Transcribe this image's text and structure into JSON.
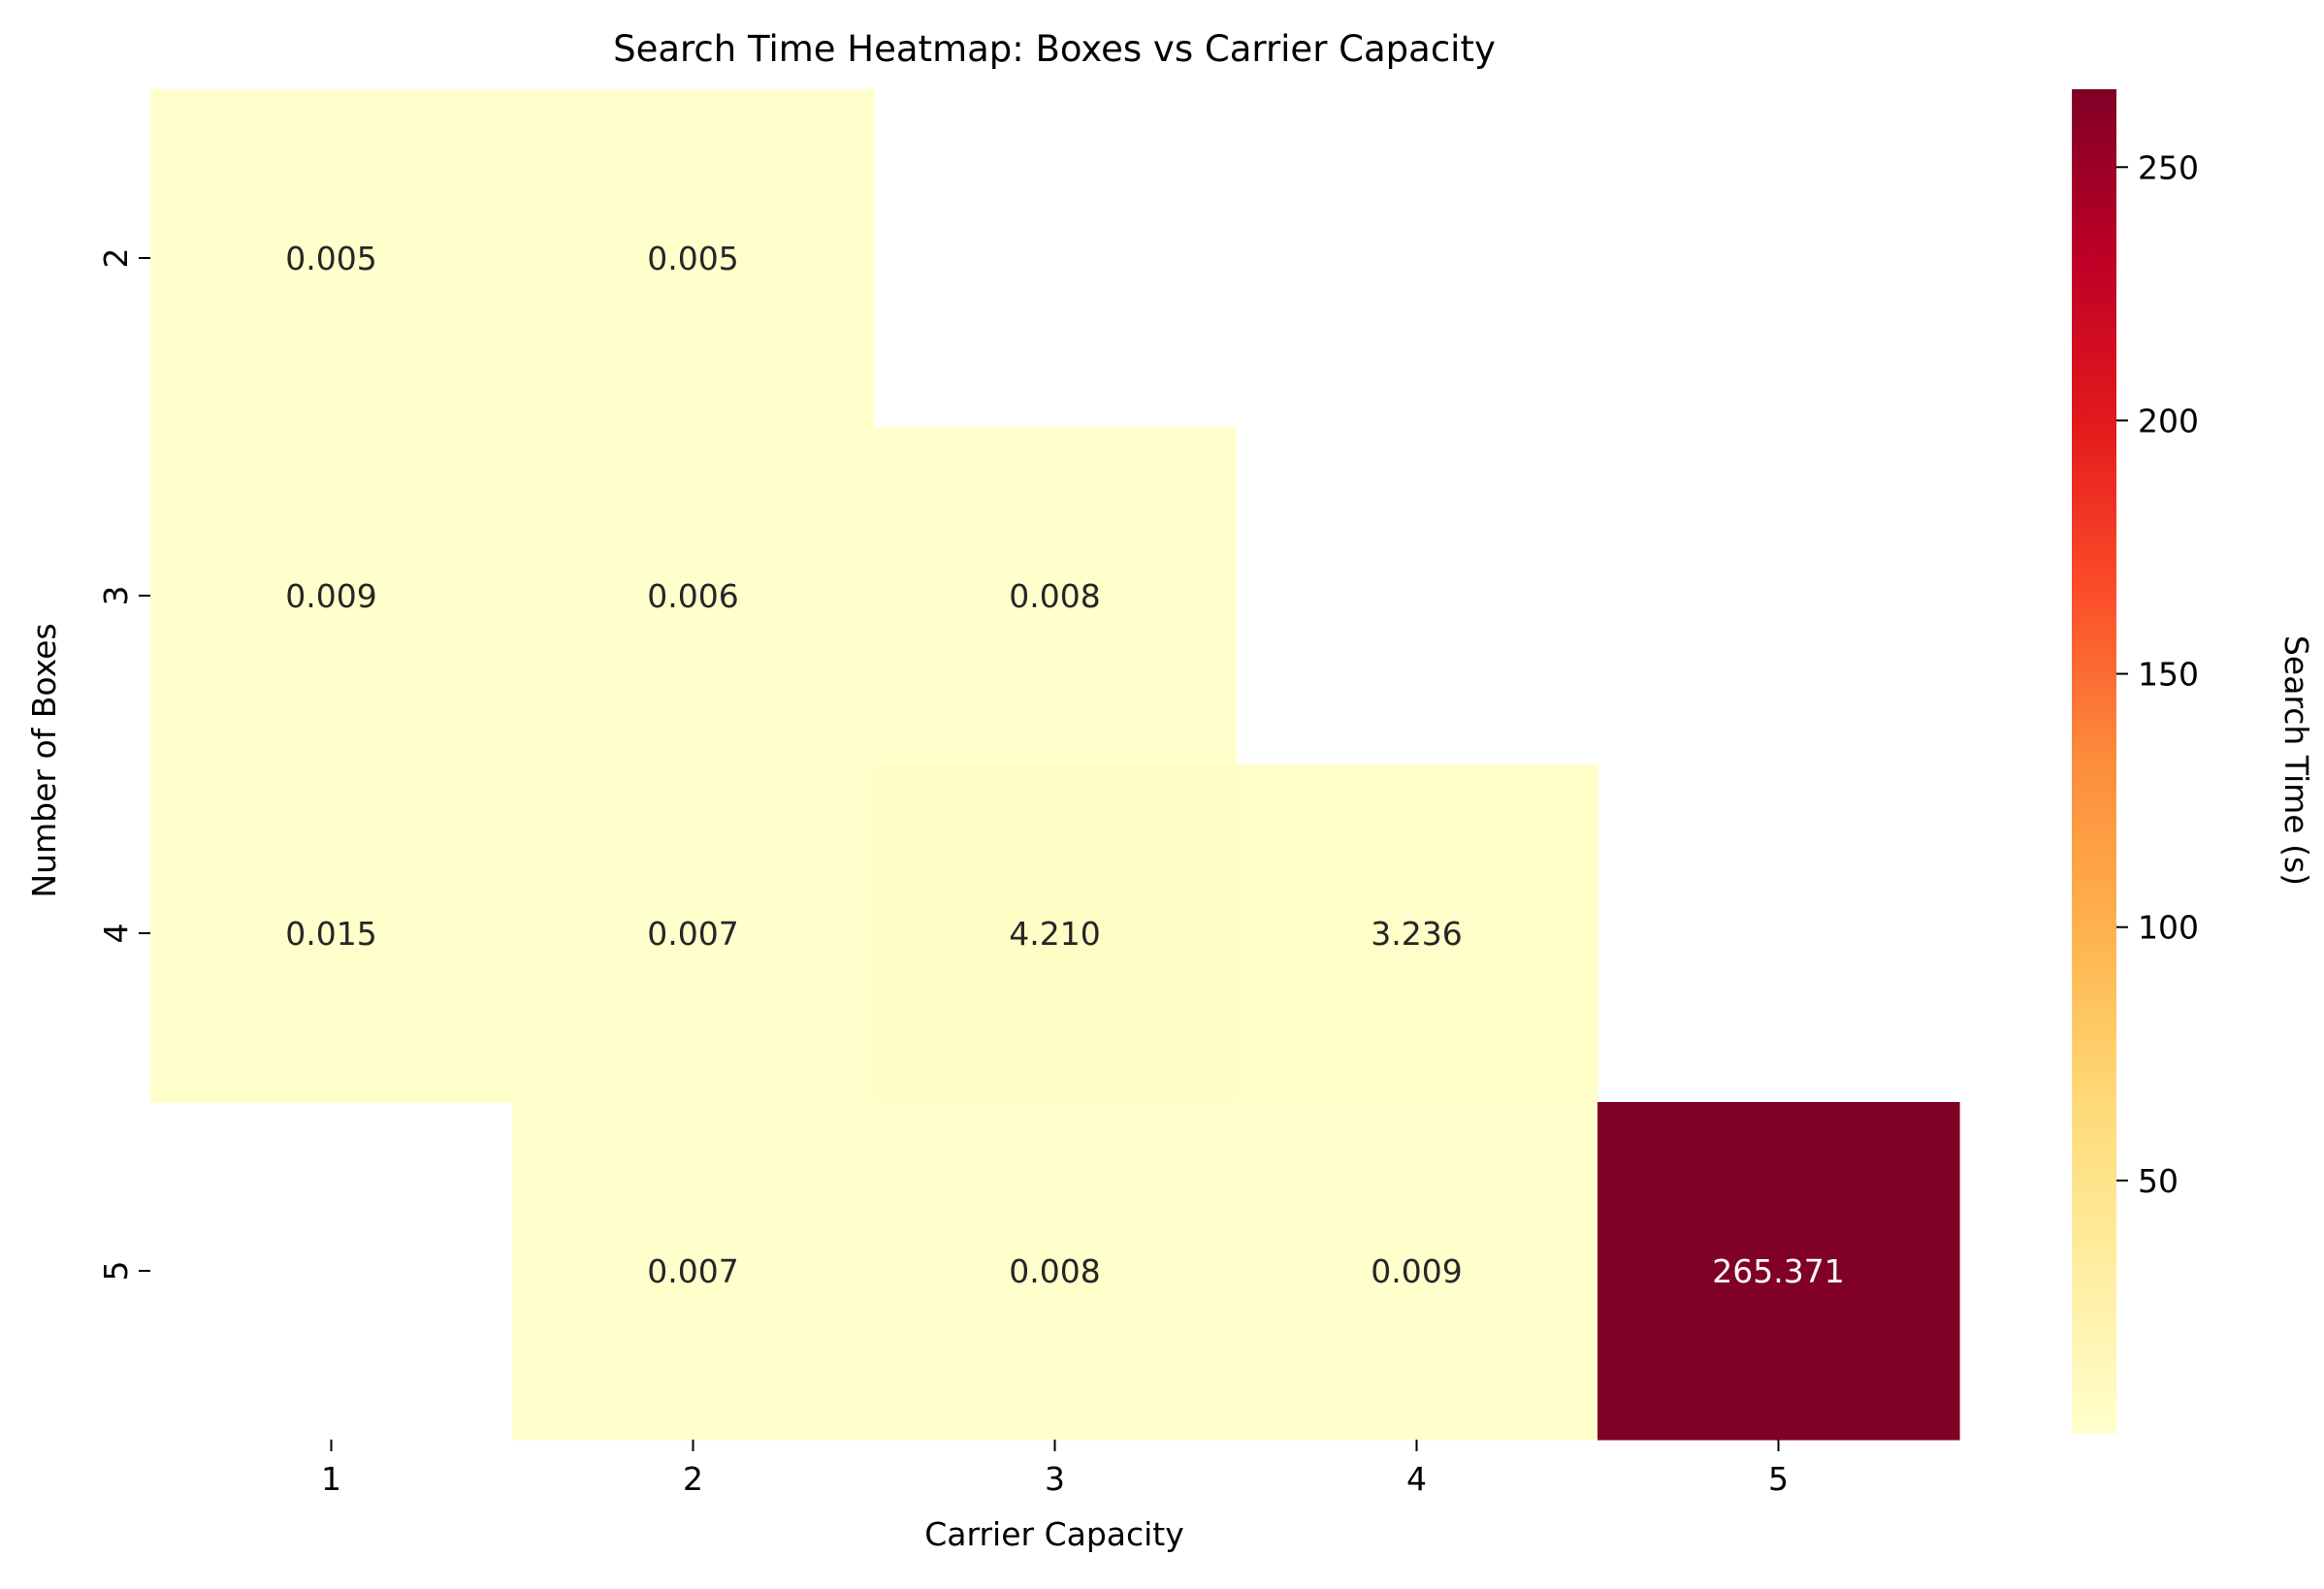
{
  "chart_data": {
    "type": "heatmap",
    "title": "Search Time Heatmap: Boxes vs Carrier Capacity",
    "xlabel": "Carrier Capacity",
    "ylabel": "Number of Boxes",
    "x_categories": [
      "1",
      "2",
      "3",
      "4",
      "5"
    ],
    "y_categories": [
      "2",
      "3",
      "4",
      "5"
    ],
    "cells": [
      {
        "y": "2",
        "x": "1",
        "value": 0.005,
        "label": "0.005"
      },
      {
        "y": "2",
        "x": "2",
        "value": 0.005,
        "label": "0.005"
      },
      {
        "y": "3",
        "x": "1",
        "value": 0.009,
        "label": "0.009"
      },
      {
        "y": "3",
        "x": "2",
        "value": 0.006,
        "label": "0.006"
      },
      {
        "y": "3",
        "x": "3",
        "value": 0.008,
        "label": "0.008"
      },
      {
        "y": "4",
        "x": "1",
        "value": 0.015,
        "label": "0.015"
      },
      {
        "y": "4",
        "x": "2",
        "value": 0.007,
        "label": "0.007"
      },
      {
        "y": "4",
        "x": "3",
        "value": 4.21,
        "label": "4.210"
      },
      {
        "y": "4",
        "x": "4",
        "value": 3.236,
        "label": "3.236"
      },
      {
        "y": "5",
        "x": "2",
        "value": 0.007,
        "label": "0.007"
      },
      {
        "y": "5",
        "x": "3",
        "value": 0.008,
        "label": "0.008"
      },
      {
        "y": "5",
        "x": "4",
        "value": 0.009,
        "label": "0.009"
      },
      {
        "y": "5",
        "x": "5",
        "value": 265.371,
        "label": "265.371"
      }
    ],
    "colorbar": {
      "label": "Search Time (s)",
      "range": [
        0.005,
        265.371
      ],
      "ticks": [
        50,
        100,
        150,
        200,
        250
      ],
      "tick_labels": [
        "50",
        "100",
        "150",
        "200",
        "250"
      ],
      "colormap": "YlOrRd",
      "color_stops": [
        "#ffffcc",
        "#ffeda0",
        "#fed976",
        "#feb24c",
        "#fd8d3c",
        "#fc4e2a",
        "#e31a1c",
        "#bd0026",
        "#800026"
      ]
    },
    "grid": false,
    "legend": "colorbar-right"
  }
}
